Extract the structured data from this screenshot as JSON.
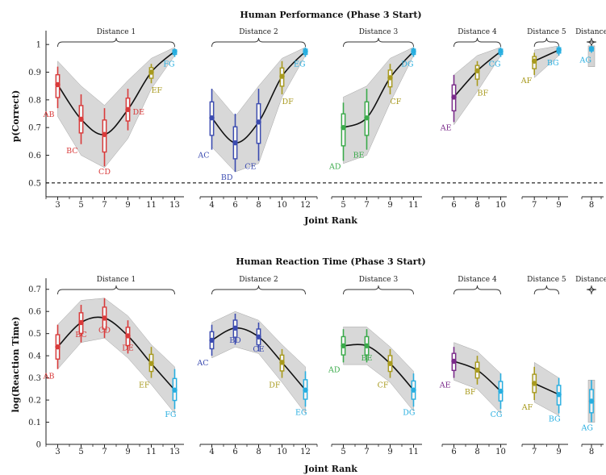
{
  "colors": {
    "AB": "#d93a3a",
    "BC": "#d93a3a",
    "CD": "#d93a3a",
    "DE": "#d93a3a",
    "AC": "#3b4bb0",
    "BD": "#3b4bb0",
    "CE": "#3b4bb0",
    "AD": "#3aaa4a",
    "BE": "#3aaa4a",
    "AE": "#7a2a8a",
    "EF": "#a89a1e",
    "DF": "#a89a1e",
    "CF": "#a89a1e",
    "BF": "#a89a1e",
    "AF": "#a89a1e",
    "FG": "#27aee0",
    "EG": "#27aee0",
    "DG": "#27aee0",
    "CG": "#27aee0",
    "BG": "#27aee0",
    "AG": "#27aee0",
    "curve": "#111111",
    "band": "#d4d4d4"
  },
  "chart_data": [
    {
      "type": "line",
      "title": "Human Performance (Phase 3 Start)",
      "xlabel": "Joint Rank",
      "ylabel": "p(Correct)",
      "ylim": [
        0.45,
        1.05
      ],
      "yticks": [
        "0.5",
        "0.6",
        "0.7",
        "0.8",
        "0.9",
        "1"
      ],
      "yticks_values": [
        0.5,
        0.6,
        0.7,
        0.8,
        0.9,
        1.0
      ],
      "chance_line": 0.5,
      "groups": [
        {
          "label": "Distance 1",
          "ranks": [
            3,
            5,
            7,
            9,
            11,
            13
          ],
          "pairs": [
            "AB",
            "BC",
            "CD",
            "DE",
            "EF",
            "FG"
          ],
          "means": [
            0.855,
            0.73,
            0.675,
            0.765,
            0.9,
            0.975
          ],
          "band_lo": [
            0.74,
            0.6,
            0.555,
            0.66,
            0.84,
            0.96
          ],
          "band_hi": [
            0.94,
            0.85,
            0.78,
            0.87,
            0.95,
            0.99
          ],
          "bar_lo": [
            0.77,
            0.64,
            0.56,
            0.69,
            0.86,
            0.955
          ],
          "bar_hi": [
            0.92,
            0.82,
            0.77,
            0.84,
            0.93,
            0.985
          ]
        },
        {
          "label": "Distance 2",
          "ranks": [
            4,
            6,
            8,
            10,
            12
          ],
          "pairs": [
            "AC",
            "BD",
            "CE",
            "DF",
            "EG"
          ],
          "means": [
            0.735,
            0.645,
            0.72,
            0.885,
            0.975
          ],
          "band_lo": [
            0.63,
            0.54,
            0.57,
            0.81,
            0.96
          ],
          "band_hi": [
            0.84,
            0.74,
            0.85,
            0.95,
            0.99
          ],
          "bar_lo": [
            0.62,
            0.54,
            0.58,
            0.82,
            0.955
          ],
          "bar_hi": [
            0.84,
            0.75,
            0.84,
            0.94,
            0.99
          ]
        },
        {
          "label": "Distance 3",
          "ranks": [
            5,
            7,
            9,
            11
          ],
          "pairs": [
            "AD",
            "BE",
            "CF",
            "DG"
          ],
          "means": [
            0.7,
            0.735,
            0.88,
            0.975
          ],
          "band_lo": [
            0.57,
            0.6,
            0.79,
            0.96
          ],
          "band_hi": [
            0.81,
            0.85,
            0.95,
            0.99
          ],
          "bar_lo": [
            0.58,
            0.62,
            0.82,
            0.955
          ],
          "bar_hi": [
            0.79,
            0.84,
            0.93,
            0.99
          ]
        },
        {
          "label": "Distance 4",
          "ranks": [
            6,
            8,
            10
          ],
          "pairs": [
            "AE",
            "BF",
            "CG"
          ],
          "means": [
            0.81,
            0.905,
            0.975
          ],
          "band_lo": [
            0.71,
            0.83,
            0.96
          ],
          "band_hi": [
            0.89,
            0.96,
            0.99
          ],
          "bar_lo": [
            0.72,
            0.85,
            0.955
          ],
          "bar_hi": [
            0.89,
            0.94,
            0.99
          ]
        },
        {
          "label": "Distance 5",
          "ranks": [
            7,
            9
          ],
          "pairs": [
            "AF",
            "BG"
          ],
          "means": [
            0.94,
            0.98
          ],
          "band_lo": [
            0.88,
            0.96
          ],
          "band_hi": [
            0.98,
            0.995
          ],
          "bar_lo": [
            0.89,
            0.96
          ],
          "bar_hi": [
            0.97,
            0.995
          ]
        },
        {
          "label": "Distance",
          "ranks": [
            8
          ],
          "pairs": [
            "AG"
          ],
          "means": [
            0.985
          ],
          "band_lo": [
            0.92
          ],
          "band_hi": [
            0.995
          ],
          "bar_lo": [
            0.97
          ],
          "bar_hi": [
            0.995
          ]
        }
      ]
    },
    {
      "type": "line",
      "title": "Human Reaction Time (Phase 3 Start)",
      "xlabel": "Joint Rank",
      "ylabel": "log(Reaction Time)",
      "ylim": [
        0,
        0.75
      ],
      "yticks": [
        "0",
        "0.1",
        "0.2",
        "0.3",
        "0.4",
        "0.5",
        "0.6",
        "0.7"
      ],
      "yticks_values": [
        0,
        0.1,
        0.2,
        0.3,
        0.4,
        0.5,
        0.6,
        0.7
      ],
      "groups": [
        {
          "label": "Distance 1",
          "ranks": [
            3,
            5,
            7,
            9,
            11,
            13
          ],
          "pairs": [
            "AB",
            "BC",
            "CD",
            "DE",
            "EF",
            "FG"
          ],
          "means": [
            0.44,
            0.55,
            0.57,
            0.49,
            0.365,
            0.245
          ],
          "band_lo": [
            0.34,
            0.46,
            0.48,
            0.39,
            0.27,
            0.14
          ],
          "band_hi": [
            0.54,
            0.65,
            0.66,
            0.58,
            0.45,
            0.35
          ],
          "bar_lo": [
            0.34,
            0.46,
            0.48,
            0.41,
            0.3,
            0.16
          ],
          "bar_hi": [
            0.54,
            0.63,
            0.66,
            0.56,
            0.44,
            0.34
          ]
        },
        {
          "label": "Distance 2",
          "ranks": [
            4,
            6,
            8,
            10,
            12
          ],
          "pairs": [
            "AC",
            "BD",
            "CE",
            "DF",
            "EG"
          ],
          "means": [
            0.47,
            0.525,
            0.485,
            0.37,
            0.245
          ],
          "band_lo": [
            0.39,
            0.44,
            0.41,
            0.28,
            0.14
          ],
          "band_hi": [
            0.55,
            0.6,
            0.56,
            0.45,
            0.35
          ],
          "bar_lo": [
            0.4,
            0.45,
            0.42,
            0.3,
            0.17
          ],
          "bar_hi": [
            0.54,
            0.59,
            0.55,
            0.43,
            0.33
          ]
        },
        {
          "label": "Distance 3",
          "ranks": [
            5,
            7,
            9,
            11
          ],
          "pairs": [
            "AD",
            "BE",
            "CF",
            "DG"
          ],
          "means": [
            0.445,
            0.445,
            0.365,
            0.245
          ],
          "band_lo": [
            0.36,
            0.36,
            0.28,
            0.15
          ],
          "band_hi": [
            0.53,
            0.53,
            0.44,
            0.33
          ],
          "bar_lo": [
            0.37,
            0.37,
            0.3,
            0.17
          ],
          "bar_hi": [
            0.52,
            0.52,
            0.43,
            0.32
          ]
        },
        {
          "label": "Distance 4",
          "ranks": [
            6,
            8,
            10
          ],
          "pairs": [
            "AE",
            "BF",
            "CG"
          ],
          "means": [
            0.375,
            0.335,
            0.24
          ],
          "band_lo": [
            0.29,
            0.25,
            0.14
          ],
          "band_hi": [
            0.46,
            0.42,
            0.32
          ],
          "bar_lo": [
            0.3,
            0.27,
            0.16
          ],
          "bar_hi": [
            0.44,
            0.4,
            0.32
          ]
        },
        {
          "label": "Distance 5",
          "ranks": [
            7,
            9
          ],
          "pairs": [
            "AF",
            "BG"
          ],
          "means": [
            0.275,
            0.225
          ],
          "band_lo": [
            0.19,
            0.13
          ],
          "band_hi": [
            0.37,
            0.3
          ],
          "bar_lo": [
            0.2,
            0.14
          ],
          "bar_hi": [
            0.35,
            0.3
          ]
        },
        {
          "label": "Distance",
          "ranks": [
            8
          ],
          "pairs": [
            "AG"
          ],
          "means": [
            0.195
          ],
          "band_lo": [
            0.1
          ],
          "band_hi": [
            0.29
          ],
          "bar_lo": [
            0.1
          ],
          "bar_hi": [
            0.29
          ]
        }
      ]
    }
  ]
}
